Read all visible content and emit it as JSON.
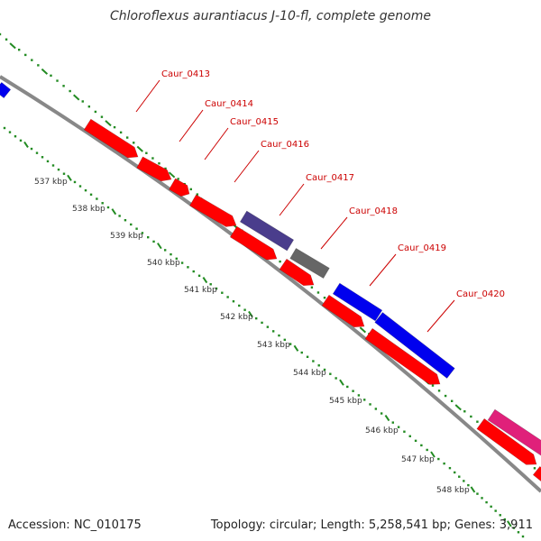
{
  "title": "Chloroflexus aurantiacus J-10-fl, complete genome",
  "footer": {
    "accession": "Accession: NC_010175",
    "topology": "Topology: circular; Length: 5,258,541 bp; Genes: 3,911"
  },
  "colors": {
    "forward_cds": "#ff0000",
    "reverse_cds_blue": "#0000ee",
    "purple_feature": "#4a3d8c",
    "gray_feature": "#666666",
    "magenta_feature": "#e0207a",
    "backbone": "#888888",
    "tick_marks": "#228b22",
    "gene_label": "#cc0000"
  },
  "gene_labels": [
    "Caur_0413",
    "Caur_0414",
    "Caur_0415",
    "Caur_0416",
    "Caur_0417",
    "Caur_0418",
    "Caur_0419",
    "Caur_0420"
  ],
  "kbp_labels": [
    "537 kbp",
    "538 kbp",
    "539 kbp",
    "540 kbp",
    "541 kbp",
    "542 kbp",
    "543 kbp",
    "544 kbp",
    "545 kbp",
    "546 kbp",
    "547 kbp",
    "548 kbp"
  ]
}
